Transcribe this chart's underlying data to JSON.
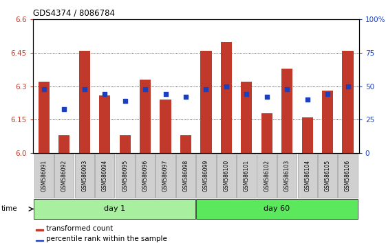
{
  "title": "GDS4374 / 8086784",
  "samples": [
    "GSM586091",
    "GSM586092",
    "GSM586093",
    "GSM586094",
    "GSM586095",
    "GSM586096",
    "GSM586097",
    "GSM586098",
    "GSM586099",
    "GSM586100",
    "GSM586101",
    "GSM586102",
    "GSM586103",
    "GSM586104",
    "GSM586105",
    "GSM586106"
  ],
  "red_values": [
    6.32,
    6.08,
    6.46,
    6.26,
    6.08,
    6.33,
    6.24,
    6.08,
    6.46,
    6.5,
    6.32,
    6.18,
    6.38,
    6.16,
    6.28,
    6.46
  ],
  "blue_percentiles": [
    48,
    33,
    48,
    44,
    39,
    48,
    44,
    42,
    48,
    50,
    44,
    42,
    48,
    40,
    44,
    50
  ],
  "day1_samples": 8,
  "day60_samples": 8,
  "ymin": 6.0,
  "ymax": 6.6,
  "yticks": [
    6.0,
    6.15,
    6.3,
    6.45,
    6.6
  ],
  "right_yticks": [
    0,
    25,
    50,
    75,
    100
  ],
  "right_yticklabels": [
    "0",
    "25",
    "50",
    "75",
    "100%"
  ],
  "bar_color": "#C0392B",
  "blue_color": "#1A3FBF",
  "day1_color": "#A8F0A0",
  "day60_color": "#5CE85C",
  "day1_label": "day 1",
  "day60_label": "day 60",
  "legend_red": "transformed count",
  "legend_blue": "percentile rank within the sample",
  "bar_width": 0.55
}
